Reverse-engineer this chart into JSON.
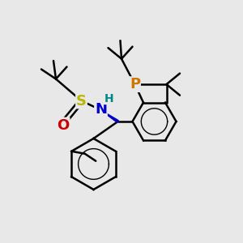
{
  "bg_color": "#e8e8e8",
  "atom_colors": {
    "S": "#b8b800",
    "N": "#0000cc",
    "O": "#cc0000",
    "P": "#cc7700",
    "H": "#008888",
    "C": "#000000"
  },
  "bond_color": "#000000",
  "bond_width": 1.8,
  "font_size_atom": 13,
  "font_size_h": 10
}
